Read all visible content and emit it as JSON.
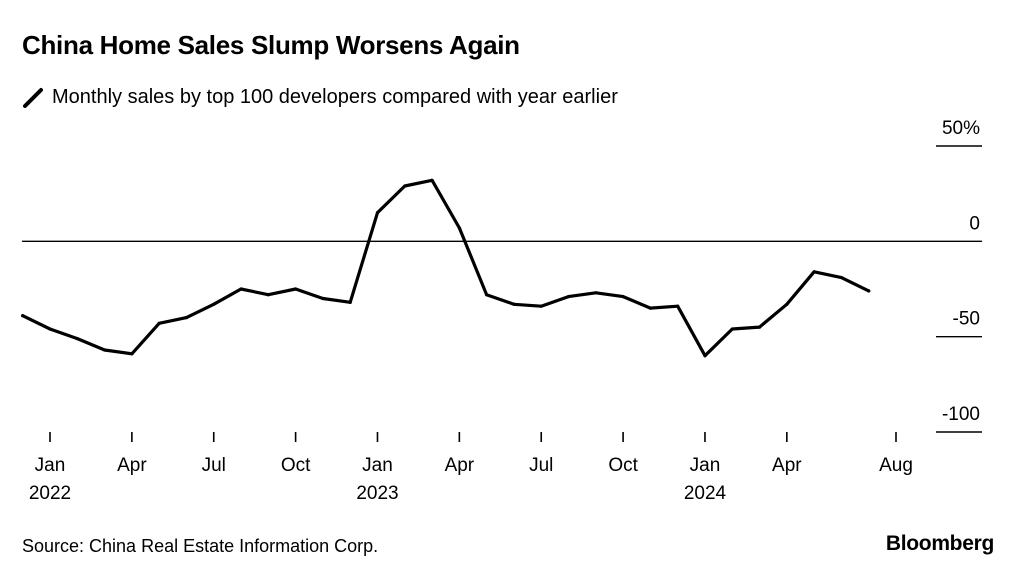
{
  "title": "China Home Sales Slump Worsens Again",
  "legend": {
    "label": "Monthly sales by top 100 developers compared with year earlier",
    "icon": "line-swatch-icon"
  },
  "source": "Source: China Real Estate Information Corp.",
  "brand": "Bloomberg",
  "chart_data": {
    "type": "line",
    "title": "China Home Sales Slump Worsens Again",
    "ylabel": "",
    "xlabel": "",
    "ylim": [
      -100,
      50
    ],
    "y_unit": "%",
    "y_ticks": [
      {
        "value": 50,
        "label": "50%"
      },
      {
        "value": 0,
        "label": "0"
      },
      {
        "value": -50,
        "label": "-50"
      },
      {
        "value": -100,
        "label": "-100"
      }
    ],
    "x_ticks": [
      {
        "date": "2022-01",
        "label": "Jan",
        "year": "2022"
      },
      {
        "date": "2022-04",
        "label": "Apr",
        "year": ""
      },
      {
        "date": "2022-07",
        "label": "Jul",
        "year": ""
      },
      {
        "date": "2022-10",
        "label": "Oct",
        "year": ""
      },
      {
        "date": "2023-01",
        "label": "Jan",
        "year": "2023"
      },
      {
        "date": "2023-04",
        "label": "Apr",
        "year": ""
      },
      {
        "date": "2023-07",
        "label": "Jul",
        "year": ""
      },
      {
        "date": "2023-10",
        "label": "Oct",
        "year": ""
      },
      {
        "date": "2024-01",
        "label": "Jan",
        "year": "2024"
      },
      {
        "date": "2024-04",
        "label": "Apr",
        "year": ""
      },
      {
        "date": "2024-08",
        "label": "Aug",
        "year": ""
      }
    ],
    "series": [
      {
        "color": "#000000",
        "points": [
          {
            "x": "2021-12",
            "y": -39
          },
          {
            "x": "2022-01",
            "y": -46
          },
          {
            "x": "2022-02",
            "y": -51
          },
          {
            "x": "2022-03",
            "y": -57
          },
          {
            "x": "2022-04",
            "y": -59
          },
          {
            "x": "2022-05",
            "y": -43
          },
          {
            "x": "2022-06",
            "y": -40
          },
          {
            "x": "2022-07",
            "y": -33
          },
          {
            "x": "2022-08",
            "y": -25
          },
          {
            "x": "2022-09",
            "y": -28
          },
          {
            "x": "2022-10",
            "y": -25
          },
          {
            "x": "2022-11",
            "y": -30
          },
          {
            "x": "2022-12",
            "y": -32
          },
          {
            "x": "2023-01",
            "y": 15
          },
          {
            "x": "2023-02",
            "y": 29
          },
          {
            "x": "2023-03",
            "y": 32
          },
          {
            "x": "2023-04",
            "y": 7
          },
          {
            "x": "2023-05",
            "y": -28
          },
          {
            "x": "2023-06",
            "y": -33
          },
          {
            "x": "2023-07",
            "y": -34
          },
          {
            "x": "2023-08",
            "y": -29
          },
          {
            "x": "2023-09",
            "y": -27
          },
          {
            "x": "2023-10",
            "y": -29
          },
          {
            "x": "2023-11",
            "y": -35
          },
          {
            "x": "2023-12",
            "y": -34
          },
          {
            "x": "2024-01",
            "y": -60
          },
          {
            "x": "2024-02",
            "y": -46
          },
          {
            "x": "2024-03",
            "y": -45
          },
          {
            "x": "2024-04",
            "y": -33
          },
          {
            "x": "2024-05",
            "y": -16
          },
          {
            "x": "2024-06",
            "y": -19
          },
          {
            "x": "2024-07",
            "y": -26
          }
        ]
      }
    ],
    "grid": false,
    "zero_line": true,
    "y_axis_position": "right"
  }
}
